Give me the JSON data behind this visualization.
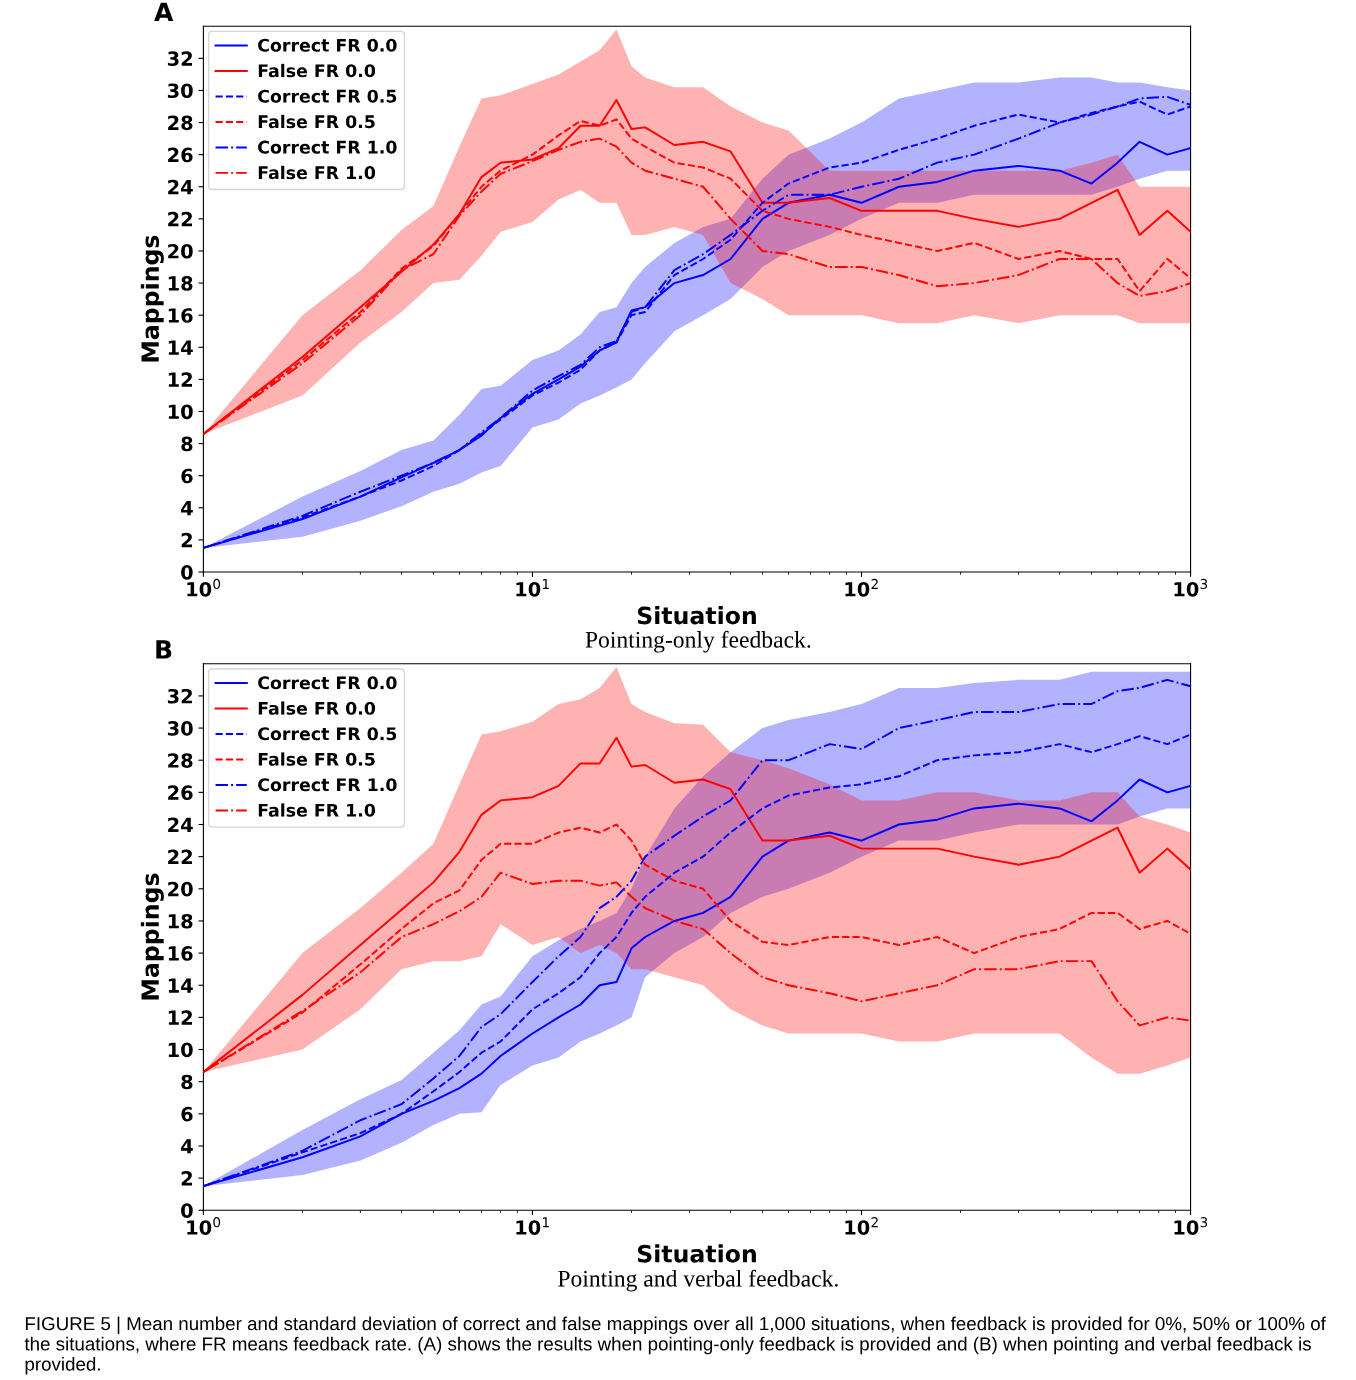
{
  "chart_data": [
    {
      "type": "line",
      "title": "A",
      "xlabel": "Situation",
      "ylabel": "Mappings",
      "log": "x",
      "xlim": [
        1,
        1000
      ],
      "ylim": [
        0,
        34
      ],
      "xticks": [
        {
          "value": 1,
          "label": "10$^{0}$"
        },
        {
          "value": 10,
          "label": "10$^{1}$"
        },
        {
          "value": 100,
          "label": "10$^{2}$"
        },
        {
          "value": 1000,
          "label": "10$^{3}$"
        }
      ],
      "yticks": [
        0,
        2,
        4,
        6,
        8,
        10,
        12,
        14,
        16,
        18,
        20,
        22,
        24,
        26,
        28,
        30,
        32
      ],
      "grid": false,
      "legend": "top left",
      "x": [
        1,
        2,
        3,
        4,
        5,
        6,
        7,
        8,
        10,
        12,
        14,
        16,
        18,
        20,
        22,
        27,
        33,
        40,
        50,
        60,
        80,
        100,
        130,
        170,
        220,
        300,
        400,
        500,
        600,
        700,
        850,
        1000
      ],
      "series": [
        {
          "name": "Correct FR 0.0",
          "color": "#0000ff",
          "line_style": "solid",
          "values": [
            1.5,
            3.3,
            4.7,
            5.9,
            6.8,
            7.6,
            8.5,
            9.6,
            11.1,
            12.0,
            12.8,
            13.8,
            14.3,
            16.3,
            16.5,
            18.0,
            18.5,
            19.5,
            22.0,
            23.0,
            23.5,
            23.0,
            24.0,
            24.3,
            25.0,
            25.3,
            25.0,
            24.2,
            25.5,
            26.8,
            26.0,
            26.4
          ],
          "lower": [
            1.5,
            2.2,
            3.2,
            4.1,
            5.0,
            5.5,
            6.2,
            6.6,
            9.0,
            9.5,
            10.5,
            11.0,
            11.5,
            12.0,
            13.0,
            15.0,
            16.0,
            17.0,
            19.0,
            20.0,
            21.0,
            22.0,
            23.0,
            23.0,
            23.5,
            23.5,
            23.5,
            23.5,
            24.0,
            24.5,
            25.0,
            25.0
          ],
          "upper": [
            1.5,
            4.7,
            6.3,
            7.6,
            8.2,
            9.8,
            11.4,
            11.6,
            13.2,
            13.8,
            14.8,
            16.2,
            16.5,
            18.0,
            19.0,
            20.5,
            21.5,
            22.0,
            24.5,
            26.0,
            27.0,
            28.0,
            29.5,
            30.0,
            30.5,
            30.5,
            30.8,
            30.8,
            30.5,
            30.5,
            30.2,
            30.0
          ]
        },
        {
          "name": "False FR 0.0",
          "color": "#ff0000",
          "line_style": "solid",
          "values": [
            8.6,
            13.4,
            16.5,
            18.7,
            20.4,
            22.3,
            24.6,
            25.5,
            25.7,
            26.4,
            27.8,
            27.8,
            29.4,
            27.6,
            27.7,
            26.6,
            26.8,
            26.2,
            23.0,
            23.0,
            23.3,
            22.5,
            22.5,
            22.5,
            22.0,
            21.5,
            22.0,
            23.0,
            23.8,
            21.0,
            22.5,
            21.2
          ],
          "lower": [
            8.6,
            11.0,
            14.3,
            16.2,
            18.0,
            18.2,
            19.7,
            21.2,
            21.8,
            23.2,
            23.8,
            23.0,
            23.0,
            21.0,
            21.0,
            21.5,
            21.0,
            18.0,
            17.0,
            16.0,
            16.0,
            16.0,
            15.5,
            15.5,
            16.0,
            15.5,
            16.0,
            16.0,
            16.0,
            15.5,
            15.5,
            15.5
          ],
          "upper": [
            8.6,
            16.0,
            18.8,
            21.3,
            22.8,
            26.5,
            29.5,
            29.7,
            30.4,
            31.0,
            31.8,
            32.5,
            33.8,
            31.5,
            30.8,
            30.2,
            30.2,
            29.0,
            28.0,
            27.5,
            25.0,
            25.0,
            25.0,
            25.0,
            25.0,
            25.0,
            25.0,
            25.5,
            26.0,
            24.0,
            24.0,
            24.0
          ]
        },
        {
          "name": "Correct FR 0.5",
          "color": "#0000ff",
          "line_style": "dashed",
          "values": [
            1.5,
            3.4,
            4.7,
            5.7,
            6.6,
            7.6,
            8.6,
            9.5,
            11.0,
            11.8,
            12.6,
            13.8,
            14.3,
            16.0,
            16.2,
            18.5,
            19.5,
            20.7,
            23.0,
            24.2,
            25.2,
            25.5,
            26.3,
            27.0,
            27.8,
            28.5,
            28.0,
            28.6,
            29.0,
            29.3,
            28.5,
            29.0
          ]
        },
        {
          "name": "False FR 0.5",
          "color": "#ff0000",
          "line_style": "dashed",
          "values": [
            8.6,
            13.2,
            16.2,
            18.9,
            20.3,
            22.3,
            24.0,
            25.0,
            26.0,
            27.2,
            28.1,
            27.8,
            28.2,
            27.0,
            26.5,
            25.5,
            25.2,
            24.5,
            22.5,
            22.0,
            21.5,
            21.0,
            20.5,
            20.0,
            20.5,
            19.5,
            20.0,
            19.5,
            19.5,
            17.5,
            19.5,
            18.3
          ]
        },
        {
          "name": "Correct FR 1.0",
          "color": "#0000ff",
          "line_style": "dashdot",
          "values": [
            1.5,
            3.5,
            5.0,
            6.0,
            6.8,
            7.6,
            8.7,
            9.6,
            11.3,
            12.2,
            12.9,
            14.0,
            14.4,
            16.2,
            16.5,
            18.8,
            19.8,
            21.0,
            22.5,
            23.5,
            23.5,
            24.0,
            24.5,
            25.5,
            26.0,
            27.0,
            28.0,
            28.5,
            29.0,
            29.5,
            29.6,
            29.1
          ]
        },
        {
          "name": "False FR 1.0",
          "color": "#ff0000",
          "line_style": "dashdot",
          "values": [
            8.6,
            13.0,
            16.0,
            18.8,
            19.8,
            22.2,
            23.7,
            24.8,
            25.6,
            26.3,
            26.8,
            27.0,
            26.5,
            25.5,
            25.0,
            24.5,
            24.0,
            22.0,
            20.0,
            19.8,
            19.0,
            19.0,
            18.5,
            17.8,
            18.0,
            18.5,
            19.5,
            19.5,
            18.0,
            17.2,
            17.5,
            18.0
          ]
        }
      ],
      "annotations": [
        "Pointing-only feedback."
      ]
    },
    {
      "type": "line",
      "title": "B",
      "xlabel": "Situation",
      "ylabel": "Mappings",
      "log": "x",
      "xlim": [
        1,
        1000
      ],
      "ylim": [
        0,
        34
      ],
      "xticks": [
        {
          "value": 1,
          "label": "10$^{0}$"
        },
        {
          "value": 10,
          "label": "10$^{1}$"
        },
        {
          "value": 100,
          "label": "10$^{2}$"
        },
        {
          "value": 1000,
          "label": "10$^{3}$"
        }
      ],
      "yticks": [
        0,
        2,
        4,
        6,
        8,
        10,
        12,
        14,
        16,
        18,
        20,
        22,
        24,
        26,
        28,
        30,
        32
      ],
      "grid": false,
      "legend": "top left",
      "x": [
        1,
        2,
        3,
        4,
        5,
        6,
        7,
        8,
        10,
        12,
        14,
        16,
        18,
        20,
        22,
        27,
        33,
        40,
        50,
        60,
        80,
        100,
        130,
        170,
        220,
        300,
        400,
        500,
        600,
        700,
        850,
        1000
      ],
      "series": [
        {
          "name": "Correct FR 0.0",
          "color": "#0000ff",
          "line_style": "solid",
          "values": [
            1.5,
            3.3,
            4.6,
            6.0,
            6.8,
            7.6,
            8.5,
            9.6,
            11.0,
            12.0,
            12.8,
            14.0,
            14.2,
            16.3,
            17.0,
            18.0,
            18.5,
            19.5,
            22.0,
            23.0,
            23.5,
            23.0,
            24.0,
            24.3,
            25.0,
            25.3,
            25.0,
            24.2,
            25.5,
            26.8,
            26.0,
            26.4
          ],
          "lower": [
            1.5,
            2.2,
            3.1,
            4.2,
            5.3,
            6.0,
            6.1,
            7.8,
            9.0,
            9.5,
            10.5,
            11.0,
            11.5,
            12.0,
            14.5,
            16.0,
            17.0,
            18.5,
            19.5,
            20.0,
            21.0,
            22.0,
            23.0,
            23.0,
            23.5,
            24.0,
            24.0,
            24.0,
            24.0,
            24.5,
            25.0,
            25.0
          ],
          "upper": [
            1.5,
            5.0,
            6.9,
            8.1,
            9.8,
            11.2,
            12.8,
            13.3,
            15.8,
            16.8,
            17.5,
            18.0,
            18.5,
            20.0,
            22.0,
            25.0,
            27.0,
            28.5,
            30.0,
            30.5,
            31.0,
            31.5,
            32.5,
            32.5,
            32.8,
            33.0,
            33.0,
            33.5,
            33.5,
            33.5,
            33.5,
            33.5
          ]
        },
        {
          "name": "False FR 0.0",
          "color": "#ff0000",
          "line_style": "solid",
          "values": [
            8.6,
            13.4,
            16.5,
            18.7,
            20.4,
            22.3,
            24.6,
            25.5,
            25.7,
            26.4,
            27.8,
            27.8,
            29.4,
            27.6,
            27.7,
            26.6,
            26.8,
            26.2,
            23.0,
            23.0,
            23.3,
            22.5,
            22.5,
            22.5,
            22.0,
            21.5,
            22.0,
            23.0,
            23.8,
            21.0,
            22.5,
            21.2
          ],
          "lower": [
            8.6,
            10.0,
            12.5,
            15.0,
            15.5,
            15.5,
            15.8,
            17.8,
            16.5,
            17.0,
            16.0,
            16.5,
            16.0,
            15.0,
            15.0,
            14.5,
            14.0,
            12.5,
            11.5,
            11.0,
            11.0,
            11.0,
            10.5,
            10.5,
            11.0,
            11.0,
            11.0,
            9.5,
            8.5,
            8.5,
            9.0,
            9.5
          ],
          "upper": [
            8.6,
            16.0,
            18.8,
            21.0,
            22.8,
            26.5,
            29.6,
            29.8,
            30.4,
            31.5,
            31.8,
            32.5,
            33.8,
            31.5,
            31.0,
            30.3,
            30.2,
            28.5,
            28.0,
            27.5,
            26.5,
            25.5,
            25.5,
            26.0,
            26.0,
            25.5,
            25.5,
            26.0,
            26.0,
            24.5,
            24.0,
            23.5
          ]
        },
        {
          "name": "Correct FR 0.5",
          "color": "#0000ff",
          "line_style": "dashed",
          "values": [
            1.5,
            3.6,
            4.8,
            6.0,
            7.4,
            8.6,
            9.8,
            10.5,
            12.5,
            13.5,
            14.5,
            16.0,
            17.0,
            18.5,
            19.5,
            21.0,
            22.0,
            23.5,
            25.0,
            25.8,
            26.3,
            26.5,
            27.0,
            28.0,
            28.3,
            28.5,
            29.0,
            28.5,
            29.0,
            29.5,
            29.0,
            29.6
          ]
        },
        {
          "name": "False FR 0.5",
          "color": "#ff0000",
          "line_style": "dashed",
          "values": [
            8.6,
            12.3,
            15.3,
            17.5,
            19.1,
            19.9,
            21.8,
            22.8,
            22.8,
            23.5,
            23.8,
            23.5,
            24.0,
            23.0,
            21.5,
            20.5,
            20.0,
            18.0,
            16.7,
            16.5,
            17.0,
            17.0,
            16.5,
            17.0,
            16.0,
            17.0,
            17.5,
            18.5,
            18.5,
            17.5,
            18.0,
            17.2
          ]
        },
        {
          "name": "Correct FR 1.0",
          "color": "#0000ff",
          "line_style": "dashdot",
          "values": [
            1.5,
            3.7,
            5.6,
            6.6,
            8.2,
            9.6,
            11.4,
            12.2,
            14.2,
            15.8,
            17.0,
            18.8,
            19.5,
            20.5,
            22.0,
            23.3,
            24.5,
            25.5,
            28.0,
            28.0,
            29.0,
            28.7,
            30.0,
            30.5,
            31.0,
            31.0,
            31.5,
            31.5,
            32.3,
            32.5,
            33.0,
            32.6
          ]
        },
        {
          "name": "False FR 1.0",
          "color": "#ff0000",
          "line_style": "dashdot",
          "values": [
            8.6,
            12.4,
            14.8,
            17.0,
            17.8,
            18.6,
            19.5,
            21.0,
            20.3,
            20.5,
            20.5,
            20.2,
            20.4,
            19.5,
            18.8,
            18.0,
            17.5,
            16.0,
            14.5,
            14.0,
            13.5,
            13.0,
            13.5,
            14.0,
            15.0,
            15.0,
            15.5,
            15.5,
            13.0,
            11.5,
            12.0,
            11.8
          ]
        }
      ],
      "annotations": [
        "Pointing and verbal feedback.",
        "FIGURE 5 | Mean number and standard deviation of correct and false mappings over all 1,000 situations, when feedback is provided for 0%, 50% or 100% of the situations, where FR means feedback rate. (A) shows the results when pointing-only feedback is provided and (B) when pointing and verbal feedback is provided."
      ]
    }
  ]
}
